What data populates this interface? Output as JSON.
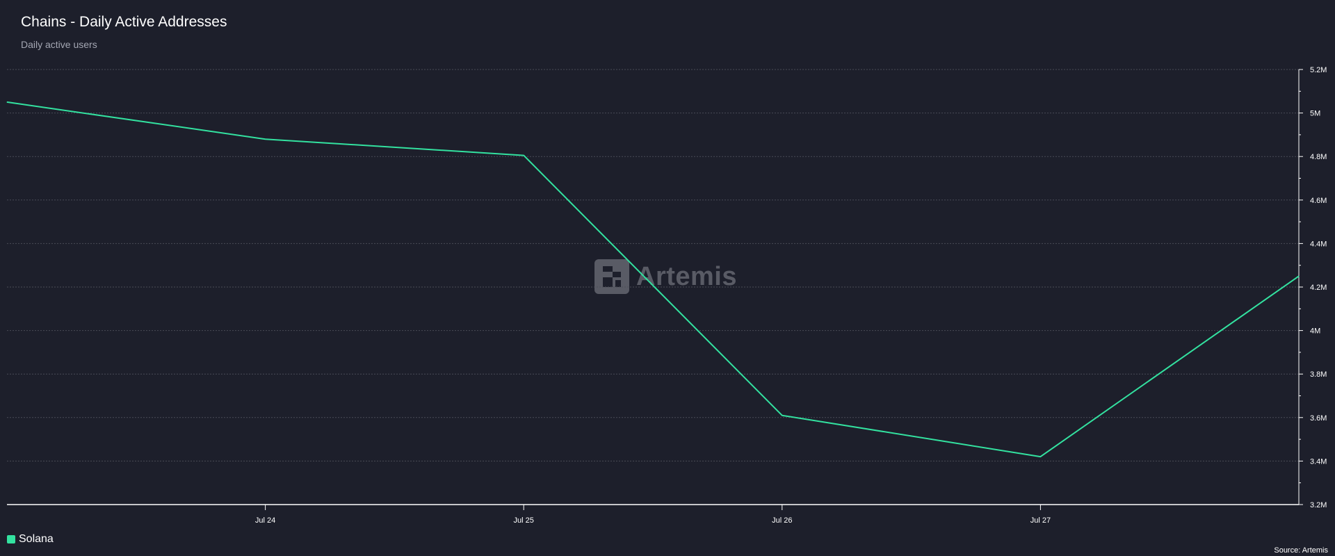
{
  "chart_data": {
    "type": "line",
    "title": "Chains - Daily Active Addresses",
    "subtitle": "Daily active users",
    "x": [
      "2023-07-23",
      "2023-07-24",
      "2023-07-25",
      "2023-07-26",
      "2023-07-27",
      "2023-07-28"
    ],
    "x_tick_labels": [
      "Jul 24",
      "Jul 25",
      "Jul 26",
      "Jul 27"
    ],
    "x_tick_dates": [
      "2023-07-24",
      "2023-07-25",
      "2023-07-26",
      "2023-07-27"
    ],
    "series": [
      {
        "name": "Solana",
        "color": "#33e2a0",
        "values": [
          5050000,
          4880000,
          4805000,
          3610000,
          3420000,
          4250000
        ]
      }
    ],
    "ylim": [
      3200000,
      5200000
    ],
    "y_ticks": [
      3200000,
      3400000,
      3600000,
      3800000,
      4000000,
      4200000,
      4400000,
      4600000,
      4800000,
      5000000,
      5200000
    ],
    "y_tick_labels": [
      "3.2M",
      "3.4M",
      "3.6M",
      "3.8M",
      "4M",
      "4.2M",
      "4.4M",
      "4.6M",
      "4.8M",
      "5M",
      "5.2M"
    ],
    "y_axis_position": "right",
    "grid": true,
    "legend_position": "bottom-left"
  },
  "source_note": "Source: Artemis",
  "watermark": {
    "text": "Artemis",
    "icon": "artemis-logo-icon"
  },
  "colors": {
    "background": "#1d1f2b",
    "grid": "#4a4c57",
    "axis": "#ffffff",
    "series": "#33e2a0"
  }
}
